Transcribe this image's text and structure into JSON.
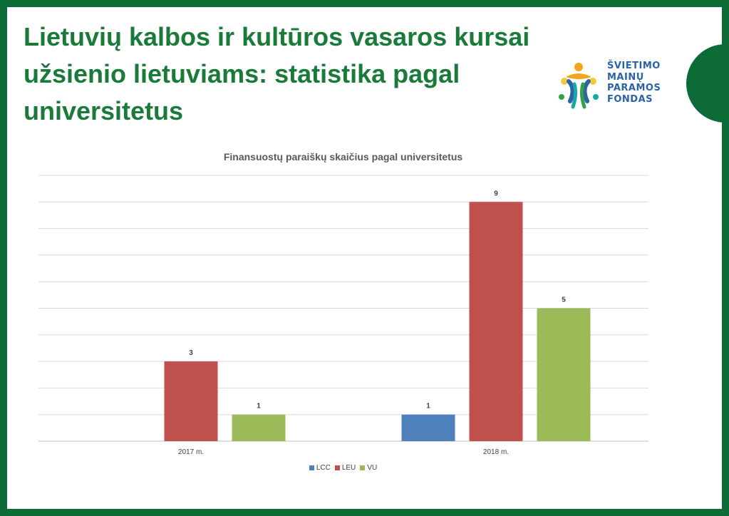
{
  "slide": {
    "title": "Lietuvių kalbos ir kultūros vasaros kursai užsienio lietuviams: statistika pagal universitetus"
  },
  "logo": {
    "lines": [
      "ŠVIETIMO",
      "MAINŲ",
      "PARAMOS",
      "FONDAS"
    ]
  },
  "colors": {
    "frame": "#0c6b37",
    "title": "#1a7a3a",
    "LCC": "#4f81bd",
    "LEU": "#c0504d",
    "VU": "#9bbb59"
  },
  "chart_data": {
    "type": "bar",
    "title": "Finansuostų paraiškų skaičius pagal universitetus",
    "categories": [
      "2017 m.",
      "2018 m."
    ],
    "series": [
      {
        "name": "LCC",
        "values": [
          null,
          1
        ]
      },
      {
        "name": "LEU",
        "values": [
          3,
          9
        ]
      },
      {
        "name": "VU",
        "values": [
          1,
          5
        ]
      }
    ],
    "ylim": [
      0,
      10
    ],
    "grid": true,
    "legend": "bottom",
    "data_labels": true
  }
}
